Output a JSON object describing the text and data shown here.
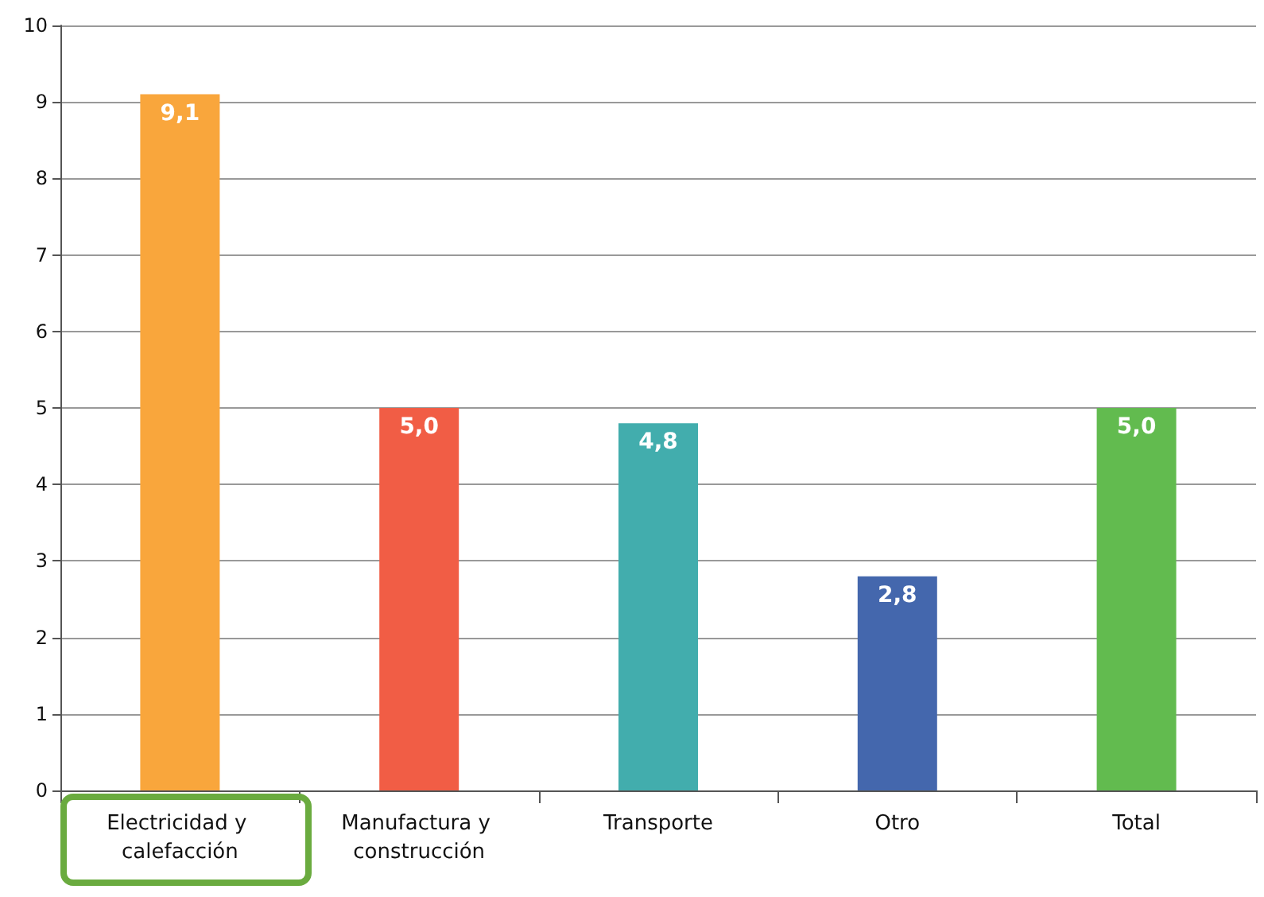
{
  "chart_data": {
    "type": "bar",
    "categories": [
      "Electricidad y calefacción",
      "Manufactura y construcción",
      "Transporte",
      "Otro",
      "Total"
    ],
    "values": [
      9.1,
      5.0,
      4.8,
      2.8,
      5.0
    ],
    "value_labels": [
      "9,1",
      "5,0",
      "4,8",
      "2,8",
      "5,0"
    ],
    "colors": [
      "#f9a63c",
      "#f15d45",
      "#42adad",
      "#4467ad",
      "#62bb4f"
    ],
    "ylim": [
      0,
      10
    ],
    "yticks": [
      0,
      1,
      2,
      3,
      4,
      5,
      6,
      7,
      8,
      9,
      10
    ],
    "grid": "y"
  }
}
